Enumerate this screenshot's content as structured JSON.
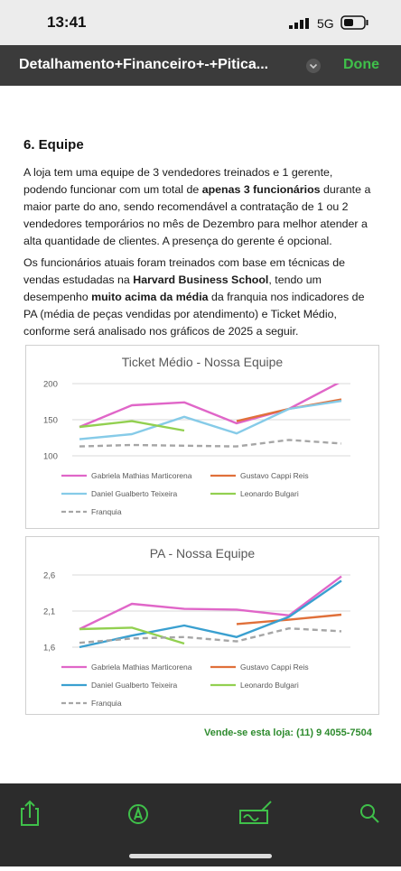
{
  "status_bar": {
    "time": "13:41",
    "network": "5G"
  },
  "header": {
    "title": "Detalhamento+Financeiro+-+Pitica...",
    "done": "Done"
  },
  "document": {
    "heading": "6. Equipe",
    "paragraphs": [
      [
        {
          "text": "A loja tem uma equipe de 3 vendedores treinados e 1 gerente, podendo funcionar com um total de ",
          "bold": false
        },
        {
          "text": "apenas 3 funcionários",
          "bold": true
        },
        {
          "text": " durante a maior parte do ano, sendo recomendável a contratação de 1 ou 2 vendedores temporários no mês de Dezembro para melhor atender a alta quantidade de clientes. A presença do gerente é opcional.",
          "bold": false
        }
      ],
      [
        {
          "text": "Os funcionários atuais foram treinados com base em técnicas de vendas estudadas na ",
          "bold": false
        },
        {
          "text": "Harvard Business School",
          "bold": true
        },
        {
          "text": ", tendo um desempenho ",
          "bold": false
        },
        {
          "text": "muito acima da média",
          "bold": true
        },
        {
          "text": " da franquia nos indicadores de PA (média de peças vendidas por atendimento) e Ticket Médio, conforme será analisado nos gráficos de 2025 a seguir.",
          "bold": false
        }
      ]
    ],
    "footer": "Vende-se esta loja: (11) 9 4055-7504"
  },
  "chart_data": [
    {
      "type": "line",
      "title": "Ticket Médio - Nossa Equipe",
      "categories": [
        null,
        null,
        null,
        null,
        null,
        null
      ],
      "ylim": [
        100,
        200
      ],
      "yticks": [
        100,
        150,
        200
      ],
      "grid": true,
      "series": [
        {
          "name": "Gabriela Mathias Marticorena",
          "color": "#e066c8",
          "values": [
            140,
            170,
            174,
            145,
            165,
            203
          ]
        },
        {
          "name": "Gustavo Cappi Reis",
          "color": "#e0703a",
          "values": [
            null,
            null,
            null,
            148,
            165,
            178
          ]
        },
        {
          "name": "Daniel Gualberto Teixeira",
          "color": "#86cbe8",
          "values": [
            123,
            130,
            154,
            131,
            165,
            176
          ]
        },
        {
          "name": "Leonardo Bulgari",
          "color": "#92d050",
          "values": [
            140,
            148,
            135,
            null,
            null,
            null
          ]
        },
        {
          "name": "Franquia",
          "color": "#a6a6a6",
          "dashed": true,
          "values": [
            113,
            115,
            114,
            113,
            122,
            117
          ]
        }
      ]
    },
    {
      "type": "line",
      "title": "PA - Nossa Equipe",
      "categories": [
        null,
        null,
        null,
        null,
        null,
        null
      ],
      "ylim": [
        1.6,
        2.6
      ],
      "yticks": [
        {
          "value": 1.6,
          "label": "1,6"
        },
        {
          "value": 2.1,
          "label": "2,1"
        },
        {
          "value": 2.6,
          "label": "2,6"
        }
      ],
      "grid": true,
      "series": [
        {
          "name": "Gabriela Mathias Marticorena",
          "color": "#e066c8",
          "values": [
            1.85,
            2.2,
            2.13,
            2.12,
            2.04,
            2.58
          ]
        },
        {
          "name": "Gustavo Cappi Reis",
          "color": "#e0703a",
          "values": [
            null,
            null,
            null,
            1.92,
            1.98,
            2.05
          ]
        },
        {
          "name": "Daniel Gualberto Teixeira",
          "color": "#3aa0d0",
          "values": [
            1.6,
            1.76,
            1.9,
            1.74,
            2.02,
            2.52
          ]
        },
        {
          "name": "Leonardo Bulgari",
          "color": "#92d050",
          "values": [
            1.85,
            1.87,
            1.65,
            null,
            null,
            null
          ]
        },
        {
          "name": "Franquia",
          "color": "#a6a6a6",
          "dashed": true,
          "values": [
            1.66,
            1.72,
            1.74,
            1.68,
            1.86,
            1.82
          ]
        }
      ]
    }
  ]
}
